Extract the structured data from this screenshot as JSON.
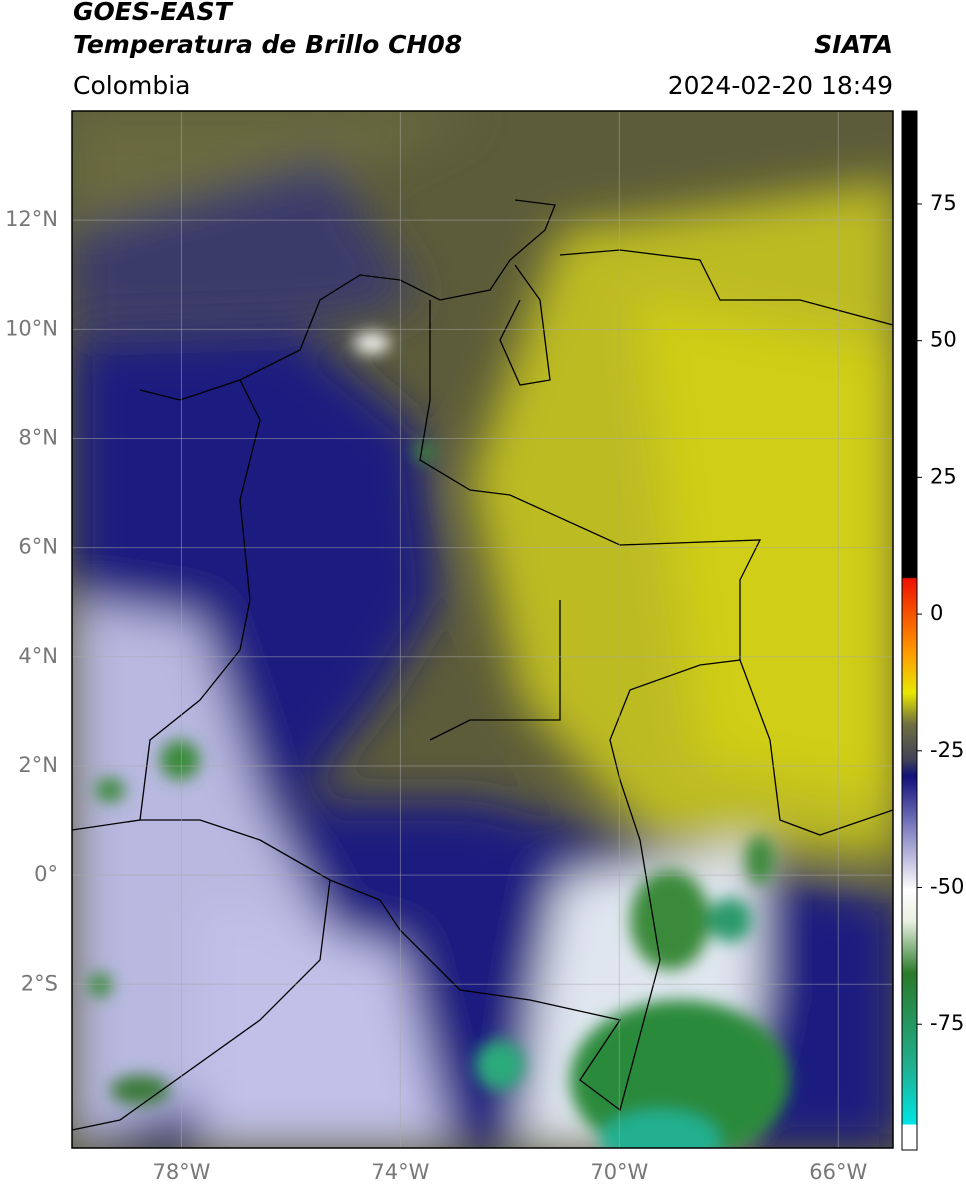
{
  "header": {
    "title": "GOES-EAST",
    "subtitle": "Temperatura de Brillo CH08",
    "organization": "SIATA",
    "region": "Colombia",
    "datetime": "2024-02-20 18:49"
  },
  "map": {
    "xlim": [
      -80,
      -65
    ],
    "ylim": [
      -5,
      14
    ],
    "xticks": [
      {
        "value": -78,
        "label": "78°W"
      },
      {
        "value": -74,
        "label": "74°W"
      },
      {
        "value": -70,
        "label": "70°W"
      },
      {
        "value": -66,
        "label": "66°W"
      }
    ],
    "yticks": [
      {
        "value": 12,
        "label": "12°N"
      },
      {
        "value": 10,
        "label": "10°N"
      },
      {
        "value": 8,
        "label": "8°N"
      },
      {
        "value": 6,
        "label": "6°N"
      },
      {
        "value": 4,
        "label": "4°N"
      },
      {
        "value": 2,
        "label": "2°N"
      },
      {
        "value": 0,
        "label": "0°"
      },
      {
        "value": -2,
        "label": "2°S"
      }
    ],
    "grid": true
  },
  "colorbar": {
    "lim": [
      -98,
      92
    ],
    "ticks": [
      75,
      50,
      25,
      0,
      -25,
      -50,
      -75
    ]
  }
}
